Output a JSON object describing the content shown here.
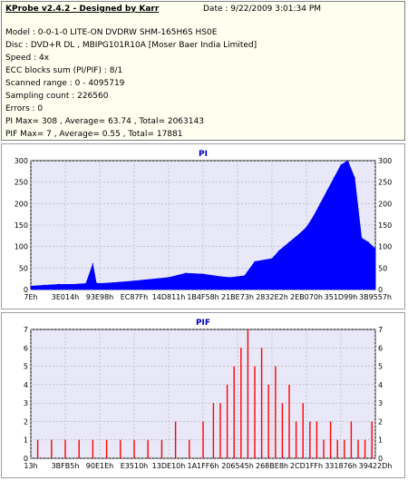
{
  "header": {
    "title": "KProbe v2.4.2 - Designed by Karr",
    "date": "Date : 9/22/2009 3:01:34 PM"
  },
  "info_lines": [
    "Model : 0-0-1-0 LITE-ON DVDRW SHM-165H6S HS0E",
    "Disc : DVD+R DL , MBIPG101R10A [Moser Baer India Limited]",
    "Speed : 4x",
    "ECC blocks sum (PI/PIF) : 8/1",
    "Scanned range : 0 - 4095719",
    "Sampling count : 226560",
    "Errors : 0",
    "PI Max= 308 , Average= 63.74 , Total= 2063143",
    "PIF Max= 7 , Average= 0.55 , Total= 17881"
  ],
  "colors": {
    "pi_fill": "#0000ff",
    "pif_bar": "#ff0000",
    "plot_bg": "#e8e8f8",
    "title": "#0000c0"
  },
  "chart_data": [
    {
      "type": "area",
      "title": "PI",
      "x_tick_labels": [
        "7Eh",
        "3E014h",
        "93E98h",
        "EC87Fh",
        "14D811h",
        "1B4F58h",
        "21BE73h",
        "2832E2h",
        "2EB070h",
        "351D99h",
        "3B9557h"
      ],
      "y_ticks": [
        0,
        50,
        100,
        150,
        200,
        250,
        300
      ],
      "ylim": [
        0,
        300
      ],
      "grid": true,
      "x": [
        0,
        4,
        8,
        12,
        16,
        18,
        19,
        20,
        24,
        30,
        40,
        45,
        50,
        55,
        58,
        60,
        62,
        65,
        70,
        72,
        75,
        78,
        80,
        82,
        84,
        86,
        88,
        90,
        92,
        94,
        96,
        98,
        100
      ],
      "y": [
        8,
        10,
        12,
        12,
        14,
        60,
        15,
        14,
        16,
        20,
        28,
        38,
        36,
        30,
        28,
        30,
        32,
        65,
        72,
        90,
        110,
        130,
        145,
        170,
        200,
        230,
        260,
        290,
        300,
        260,
        120,
        110,
        95
      ]
    },
    {
      "type": "bar",
      "title": "PIF",
      "x_tick_labels": [
        "13h",
        "3BFB5h",
        "90E1Eh",
        "E3510h",
        "13DE10h",
        "1A1FF6h",
        "206545h",
        "268BE8h",
        "2CD1FFh",
        "331876h",
        "39422Dh"
      ],
      "y_ticks": [
        0,
        1,
        2,
        3,
        4,
        5,
        6,
        7
      ],
      "ylim": [
        0,
        7
      ],
      "grid": true,
      "x": [
        2,
        6,
        10,
        14,
        18,
        22,
        26,
        30,
        34,
        38,
        42,
        46,
        50,
        53,
        55,
        57,
        59,
        61,
        63,
        65,
        67,
        69,
        71,
        73,
        75,
        77,
        79,
        81,
        83,
        85,
        87,
        89,
        91,
        93,
        95,
        97,
        99
      ],
      "y": [
        1,
        1,
        1,
        1,
        1,
        1,
        1,
        1,
        1,
        1,
        2,
        1,
        2,
        3,
        3,
        4,
        5,
        6,
        7,
        5,
        6,
        4,
        5,
        3,
        4,
        2,
        3,
        2,
        2,
        1,
        2,
        1,
        1,
        2,
        1,
        1,
        2
      ]
    }
  ]
}
